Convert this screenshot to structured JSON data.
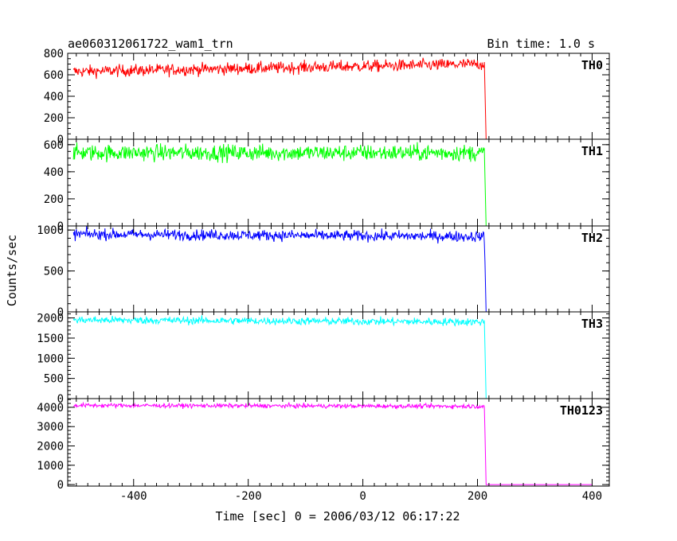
{
  "chart_data": {
    "type": "line",
    "title": "ae060312061722_wam1_trn",
    "subtitle": "Bin time: 1.0 s",
    "xlabel": "Time [sec] 0 = 2006/03/12 06:17:22",
    "ylabel": "Counts/sec",
    "xlim": [
      -515,
      430
    ],
    "x_ticks": [
      "-400",
      "-200",
      "0",
      "200",
      "400"
    ],
    "x_tick_values": [
      -400,
      -200,
      0,
      200,
      400
    ],
    "data_x_range": [
      -505,
      400
    ],
    "drop_time": 213,
    "grid": false,
    "panels": [
      {
        "name": "TH0",
        "color": "#ff0000",
        "ylim": [
          0,
          800
        ],
        "y_ticks": [
          "0",
          "200",
          "400",
          "600",
          "800"
        ],
        "y_tick_values": [
          0,
          200,
          400,
          600,
          800
        ],
        "level_start": 630,
        "level_end": 700,
        "noise": 55,
        "level_after": 0
      },
      {
        "name": "TH1",
        "color": "#00ff00",
        "ylim": [
          0,
          640
        ],
        "y_ticks": [
          "0",
          "200",
          "400",
          "600"
        ],
        "y_tick_values": [
          0,
          200,
          400,
          600
        ],
        "level_start": 540,
        "level_end": 540,
        "noise": 60,
        "level_after": 0
      },
      {
        "name": "TH2",
        "color": "#0000ff",
        "ylim": [
          0,
          1050
        ],
        "y_ticks": [
          "0",
          "500",
          "1000"
        ],
        "y_tick_values": [
          0,
          500,
          1000
        ],
        "level_start": 950,
        "level_end": 920,
        "noise": 65,
        "level_after": 0
      },
      {
        "name": "TH3",
        "color": "#00ffff",
        "ylim": [
          0,
          2150
        ],
        "y_ticks": [
          "0",
          "500",
          "1000",
          "1500",
          "2000"
        ],
        "y_tick_values": [
          0,
          500,
          1000,
          1500,
          2000
        ],
        "level_start": 1950,
        "level_end": 1900,
        "noise": 95,
        "level_after": 0
      },
      {
        "name": "TH0123",
        "color": "#ff00ff",
        "ylim": [
          -80,
          4450
        ],
        "y_ticks": [
          "0",
          "1000",
          "2000",
          "3000",
          "4000"
        ],
        "y_tick_values": [
          0,
          1000,
          2000,
          3000,
          4000
        ],
        "level_start": 4100,
        "level_end": 4050,
        "noise": 110,
        "level_after": 0
      }
    ]
  }
}
